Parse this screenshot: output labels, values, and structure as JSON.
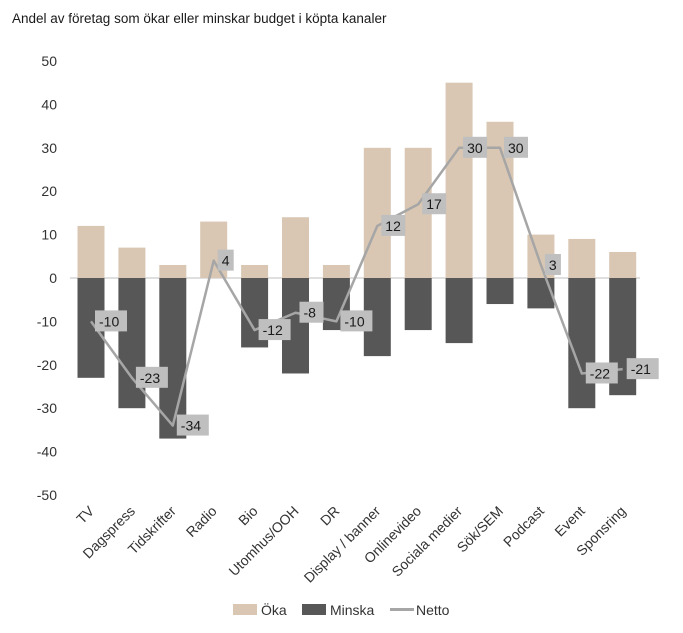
{
  "chart_data": {
    "type": "bar",
    "title": "Andel av företag som ökar eller minskar budget i köpta kanaler",
    "categories": [
      "TV",
      "Dagspress",
      "Tidskrifter",
      "Radio",
      "Bio",
      "Utomhus/OOH",
      "DR",
      "Display / banner",
      "Onlinevideo",
      "Sociala medier",
      "Sök/SEM",
      "Podcast",
      "Event",
      "Sponsring"
    ],
    "series": [
      {
        "name": "Öka",
        "kind": "bar",
        "color": "#d9c7b3",
        "values": [
          12,
          7,
          3,
          13,
          3,
          14,
          3,
          30,
          30,
          45,
          36,
          10,
          9,
          6
        ]
      },
      {
        "name": "Minska",
        "kind": "bar",
        "color": "#575757",
        "values": [
          -23,
          -30,
          -37,
          0,
          -16,
          -22,
          -12,
          -18,
          -12,
          -15,
          -6,
          -7,
          -30,
          -27
        ]
      },
      {
        "name": "Netto",
        "kind": "line",
        "color": "#a6a6a6",
        "values": [
          -10,
          -23,
          -34,
          4,
          -12,
          -8,
          -10,
          12,
          17,
          30,
          30,
          3,
          -22,
          -21
        ]
      }
    ],
    "net_labels": [
      "-10",
      "-23",
      "-34",
      "4",
      "-12",
      "-8",
      "-10",
      "12",
      "17",
      "30",
      "30",
      "3",
      "-22",
      "-21"
    ],
    "yticks": [
      "50",
      "40",
      "30",
      "20",
      "10",
      "0",
      "-10",
      "-20",
      "-30",
      "-40",
      "-50"
    ],
    "ylim": [
      -50,
      50
    ],
    "grid": false,
    "legend": "bottom"
  }
}
